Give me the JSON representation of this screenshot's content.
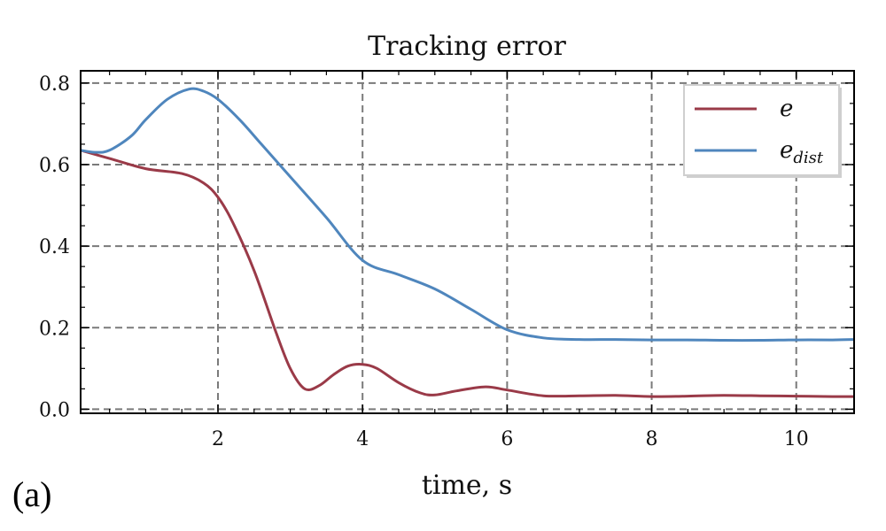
{
  "chart_data": {
    "type": "line",
    "title": "Tracking error",
    "xlabel": "time, s",
    "ylabel": "",
    "xlim": [
      0.1,
      10.8
    ],
    "ylim": [
      -0.01,
      0.83
    ],
    "xticks": [
      2,
      4,
      6,
      8,
      10
    ],
    "xtick_labels": [
      "2",
      "4",
      "6",
      "8",
      "10"
    ],
    "yticks": [
      0.0,
      0.2,
      0.4,
      0.6,
      0.8
    ],
    "ytick_labels": [
      "0.0",
      "0.2",
      "0.4",
      "0.6",
      "0.8"
    ],
    "grid": true,
    "legend_position": "top-right",
    "panel_label": "(a)",
    "series": [
      {
        "name": "e",
        "legend_main": "e",
        "legend_sub": "",
        "color": "#9a3a48",
        "x": [
          0.1,
          0.5,
          1.0,
          1.5,
          1.8,
          2.0,
          2.2,
          2.5,
          2.8,
          3.0,
          3.2,
          3.4,
          3.6,
          3.8,
          4.0,
          4.2,
          4.5,
          4.8,
          5.0,
          5.3,
          5.7,
          6.0,
          6.5,
          7.0,
          7.5,
          8.0,
          8.5,
          9.0,
          9.5,
          10.0,
          10.5,
          10.8
        ],
        "y": [
          0.635,
          0.615,
          0.59,
          0.578,
          0.555,
          0.52,
          0.46,
          0.34,
          0.19,
          0.1,
          0.05,
          0.058,
          0.085,
          0.106,
          0.11,
          0.1,
          0.065,
          0.04,
          0.035,
          0.045,
          0.055,
          0.047,
          0.033,
          0.033,
          0.034,
          0.031,
          0.032,
          0.034,
          0.033,
          0.032,
          0.031,
          0.031
        ]
      },
      {
        "name": "e_dist",
        "legend_main": "e",
        "legend_sub": "dist",
        "color": "#4f86bd",
        "x": [
          0.1,
          0.3,
          0.5,
          0.8,
          1.0,
          1.3,
          1.6,
          1.8,
          2.0,
          2.3,
          2.6,
          3.0,
          3.5,
          4.0,
          4.5,
          5.0,
          5.5,
          6.0,
          6.5,
          7.0,
          7.5,
          8.0,
          8.5,
          9.0,
          9.5,
          10.0,
          10.5,
          10.8
        ],
        "y": [
          0.635,
          0.63,
          0.635,
          0.67,
          0.71,
          0.76,
          0.785,
          0.78,
          0.76,
          0.71,
          0.65,
          0.57,
          0.47,
          0.365,
          0.33,
          0.295,
          0.245,
          0.195,
          0.175,
          0.171,
          0.171,
          0.17,
          0.17,
          0.169,
          0.169,
          0.17,
          0.17,
          0.171
        ]
      }
    ]
  }
}
